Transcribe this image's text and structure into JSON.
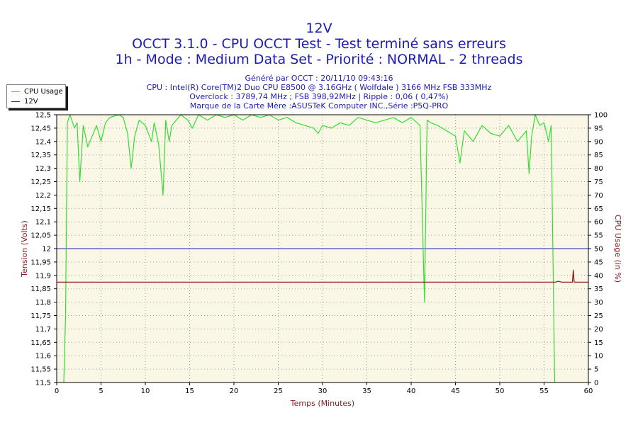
{
  "header": {
    "title": "12V",
    "line2": "OCCT 3.1.0 - CPU OCCT Test - Test terminé sans erreurs",
    "line3": "1h - Mode : Medium Data Set - Priorité : NORMAL - 2 threads"
  },
  "info": {
    "generated": "Généré par OCCT : 20/11/10 09:43:16",
    "cpu": "CPU : Intel(R) Core(TM)2 Duo CPU E8500 @ 3.16GHz ( Wolfdale ) 3166 MHz FSB 333MHz",
    "overclock": "Overclock : 3789,74 MHz ; FSB 398,92MHz | Ripple : 0,06 ( 0,47%)",
    "motherboard": "Marque de la Carte Mère :ASUSTeK Computer INC.,Série :P5Q-PRO"
  },
  "legend": [
    {
      "label": "CPU Usage",
      "color": "#33dd33"
    },
    {
      "label": "12V",
      "color": "#8b1010"
    }
  ],
  "colors": {
    "plot_bg": "#fbf7e6",
    "grid": "#a0a0a0",
    "left_axis_label": "#8b1a1a",
    "x_axis_label": "#8b1a1a",
    "right_axis_label": "#8b1a1a",
    "reference_line": "#1c1cb4"
  },
  "chart_data": {
    "type": "line",
    "xlabel": "Temps (Minutes)",
    "ylabel": "Tension (Volts)",
    "y2label": "CPU Usage (in %)",
    "xlim": [
      0,
      60
    ],
    "ylim": [
      11.5,
      12.5
    ],
    "y2lim": [
      0,
      100
    ],
    "grid": true,
    "legend_position": "top-left",
    "x_ticks": [
      "0",
      "5",
      "10",
      "15",
      "20",
      "25",
      "30",
      "35",
      "40",
      "45",
      "50",
      "55",
      "60"
    ],
    "y_ticks": [
      "11,5",
      "11,55",
      "11,6",
      "11,65",
      "11,7",
      "11,75",
      "11,8",
      "11,85",
      "11,9",
      "11,95",
      "12",
      "12,05",
      "12,1",
      "12,15",
      "12,2",
      "12,25",
      "12,3",
      "12,35",
      "12,4",
      "12,45",
      "12,5"
    ],
    "y2_ticks": [
      "0",
      "5",
      "10",
      "15",
      "20",
      "25",
      "30",
      "35",
      "40",
      "45",
      "50",
      "55",
      "60",
      "65",
      "70",
      "75",
      "80",
      "85",
      "90",
      "95",
      "100"
    ],
    "reference_line": {
      "y": 12.0
    },
    "series": [
      {
        "name": "CPU Usage",
        "axis": "right",
        "x": [
          0.8,
          1.0,
          1.2,
          1.5,
          2.0,
          2.3,
          2.6,
          3.0,
          3.5,
          4.0,
          4.5,
          5.0,
          5.5,
          6.0,
          7.0,
          7.5,
          8.0,
          8.4,
          8.8,
          9.3,
          10.0,
          10.7,
          11.0,
          11.5,
          12.0,
          12.3,
          12.7,
          13.0,
          14.0,
          14.8,
          15.3,
          16.0,
          17.0,
          18.0,
          19.0,
          20.0,
          21.0,
          22.0,
          23.0,
          24.0,
          25.0,
          26.0,
          27.0,
          28.0,
          29.0,
          29.5,
          30.0,
          31.0,
          32.0,
          33.0,
          34.0,
          35.0,
          36.0,
          37.0,
          38.0,
          39.0,
          40.0,
          41.0,
          41.5,
          41.8,
          42.2,
          43.0,
          44.0,
          45.0,
          45.5,
          46.0,
          47.0,
          48.0,
          49.0,
          50.0,
          51.0,
          52.0,
          53.0,
          53.3,
          53.6,
          54.0,
          54.5,
          55.0,
          55.5,
          55.8,
          56.2
        ],
        "values": [
          0,
          25,
          97,
          100,
          95,
          97,
          75,
          96,
          88,
          92,
          96,
          90,
          97,
          99,
          100,
          99,
          93,
          80,
          92,
          98,
          96,
          90,
          97,
          89,
          70,
          98,
          90,
          96,
          100,
          98,
          95,
          100,
          98,
          100,
          99,
          100,
          98,
          100,
          99,
          100,
          98,
          99,
          97,
          96,
          95,
          93,
          96,
          95,
          97,
          96,
          99,
          98,
          97,
          98,
          99,
          97,
          99,
          96,
          30,
          98,
          97,
          96,
          94,
          92,
          82,
          94,
          90,
          96,
          93,
          92,
          96,
          90,
          94,
          78,
          92,
          100,
          96,
          97,
          90,
          96,
          0
        ]
      },
      {
        "name": "12V",
        "axis": "left",
        "x": [
          0,
          55.8,
          56.0,
          56.3,
          56.6,
          57.0,
          57.5,
          58.0,
          58.2,
          58.3,
          58.4,
          60
        ],
        "values": [
          11.875,
          11.875,
          11.875,
          11.875,
          11.878,
          11.875,
          11.875,
          11.875,
          11.875,
          11.92,
          11.875,
          11.875
        ]
      }
    ]
  }
}
